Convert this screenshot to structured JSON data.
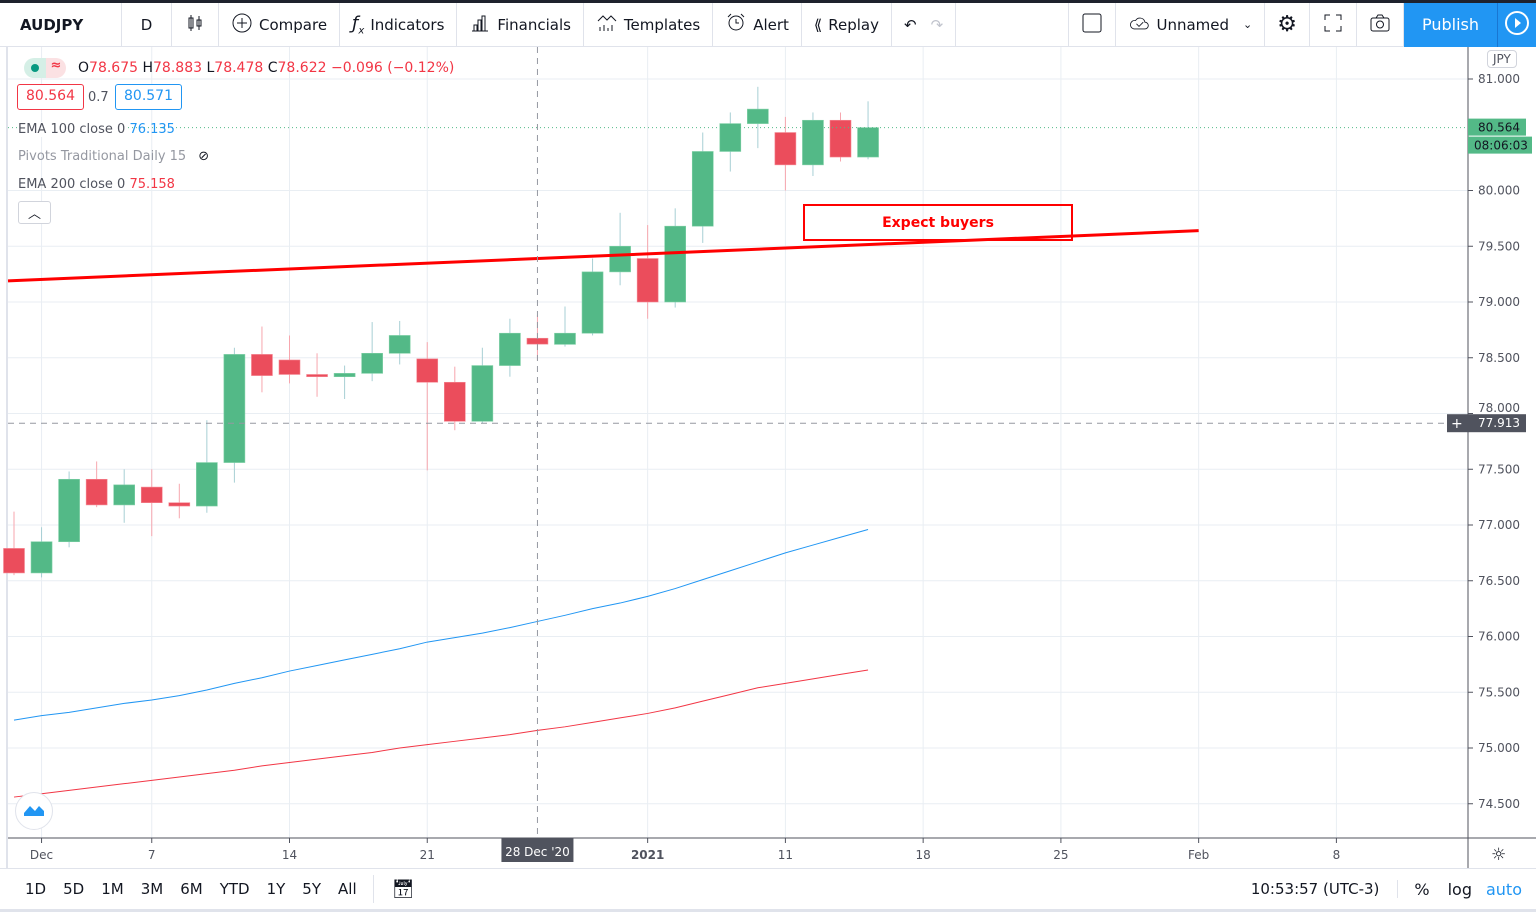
{
  "toolbar": {
    "symbol": "AUDJPY",
    "interval": "D",
    "compare": "Compare",
    "indicators": "Indicators",
    "financials": "Financials",
    "templates": "Templates",
    "alert": "Alert",
    "replay": "Replay",
    "layout_name": "Unnamed",
    "publish": "Publish"
  },
  "legend": {
    "ohlc": {
      "o_label": "O",
      "o": "78.675",
      "h_label": "H",
      "h": "78.883",
      "l_label": "L",
      "l": "78.478",
      "c_label": "C",
      "c": "78.622",
      "change": "−0.096 (−0.12%)"
    },
    "sell_price": "80.564",
    "spread": "0.7",
    "buy_price": "80.571",
    "indicators": [
      {
        "name": "EMA 100 close 0",
        "value": "76.135",
        "color": "#2196f3"
      },
      {
        "name": "Pivots Traditional Daily 15",
        "value": "",
        "hidden": true
      },
      {
        "name": "EMA 200 close 0",
        "value": "75.158",
        "color": "#f23645"
      }
    ]
  },
  "annotation": {
    "text": "Expect buyers",
    "color": "#ff0000"
  },
  "price_axis": {
    "currency": "JPY",
    "ticks": [
      "81.000",
      "80.000",
      "79.500",
      "79.000",
      "78.500",
      "78.000",
      "77.500",
      "77.000",
      "76.500",
      "76.000",
      "75.500",
      "75.000",
      "74.500"
    ],
    "last_price": "80.564",
    "countdown": "08:06:03",
    "crosshair_price": "77.913"
  },
  "time_axis": {
    "ticks": [
      "Dec",
      "7",
      "14",
      "21",
      "2021",
      "11",
      "18",
      "25",
      "Feb",
      "8"
    ],
    "crosshair_date": "28 Dec '20"
  },
  "bottom_bar": {
    "ranges": [
      "1D",
      "5D",
      "1M",
      "3M",
      "6M",
      "YTD",
      "1Y",
      "5Y",
      "All"
    ],
    "clock": "10:53:57 (UTC-3)",
    "percent": "%",
    "log": "log",
    "auto": "auto"
  },
  "chart_data": {
    "type": "candlestick",
    "symbol": "AUDJPY",
    "ylim": [
      74.3,
      81.3
    ],
    "up_color": "#53b987",
    "down_color": "#eb4d5c",
    "dates": [
      "2020-11-30",
      "2020-12-01",
      "2020-12-02",
      "2020-12-03",
      "2020-12-04",
      "2020-12-07",
      "2020-12-08",
      "2020-12-09",
      "2020-12-10",
      "2020-12-11",
      "2020-12-14",
      "2020-12-15",
      "2020-12-16",
      "2020-12-17",
      "2020-12-18",
      "2020-12-21",
      "2020-12-22",
      "2020-12-23",
      "2020-12-24",
      "2020-12-28",
      "2020-12-29",
      "2020-12-30",
      "2020-12-31",
      "2021-01-04",
      "2021-01-05",
      "2021-01-06",
      "2021-01-07",
      "2021-01-08",
      "2021-01-11",
      "2021-01-12",
      "2021-01-13",
      "2021-01-14"
    ],
    "open": [
      76.79,
      76.57,
      76.85,
      77.41,
      77.18,
      77.34,
      77.2,
      77.17,
      77.56,
      78.53,
      78.48,
      78.35,
      78.33,
      78.36,
      78.54,
      78.49,
      78.28,
      77.93,
      78.43,
      78.675,
      78.62,
      78.72,
      79.27,
      79.39,
      79.0,
      79.68,
      80.35,
      80.6,
      80.52,
      80.23,
      80.63,
      80.3
    ],
    "high": [
      77.12,
      76.98,
      77.48,
      77.57,
      77.5,
      77.5,
      77.37,
      77.94,
      78.59,
      78.78,
      78.7,
      78.54,
      78.43,
      78.82,
      78.83,
      78.64,
      78.42,
      78.59,
      78.85,
      78.883,
      78.96,
      79.39,
      79.8,
      79.69,
      79.84,
      80.52,
      80.7,
      80.93,
      80.66,
      80.7,
      80.7,
      80.8
    ],
    "low": [
      76.55,
      76.53,
      76.8,
      77.16,
      77.02,
      76.9,
      77.06,
      77.11,
      77.38,
      78.19,
      78.27,
      78.15,
      78.13,
      78.29,
      78.44,
      77.49,
      77.85,
      77.91,
      78.33,
      78.478,
      78.6,
      78.7,
      79.15,
      78.85,
      78.95,
      79.53,
      80.17,
      80.38,
      80.0,
      80.13,
      80.26,
      80.28
    ],
    "close": [
      76.57,
      76.85,
      77.41,
      77.18,
      77.36,
      77.2,
      77.17,
      77.56,
      78.53,
      78.34,
      78.35,
      78.33,
      78.36,
      78.54,
      78.7,
      78.28,
      77.93,
      78.43,
      78.72,
      78.622,
      78.72,
      79.27,
      79.5,
      79.0,
      79.68,
      80.35,
      80.6,
      80.73,
      80.23,
      80.63,
      80.3,
      80.564
    ],
    "series": [
      {
        "name": "EMA 100 close 0",
        "color": "#2196f3",
        "values": [
          75.25,
          75.29,
          75.32,
          75.36,
          75.4,
          75.43,
          75.47,
          75.52,
          75.58,
          75.63,
          75.69,
          75.74,
          75.79,
          75.84,
          75.89,
          75.95,
          75.99,
          76.03,
          76.08,
          76.135,
          76.19,
          76.25,
          76.3,
          76.36,
          76.43,
          76.51,
          76.59,
          76.67,
          76.75,
          76.82,
          76.89,
          76.96
        ]
      },
      {
        "name": "EMA 200 close 0",
        "color": "#f23645",
        "values": [
          74.56,
          74.59,
          74.62,
          74.65,
          74.68,
          74.71,
          74.74,
          74.77,
          74.8,
          74.84,
          74.87,
          74.9,
          74.93,
          74.96,
          75.0,
          75.03,
          75.06,
          75.09,
          75.12,
          75.158,
          75.19,
          75.23,
          75.27,
          75.31,
          75.36,
          75.42,
          75.48,
          75.54,
          75.58,
          75.62,
          75.66,
          75.7
        ]
      }
    ],
    "trendline": {
      "color": "#ff0000",
      "start": {
        "date": "2020-11-30",
        "price": 79.19
      },
      "end": {
        "date": "2021-02-01",
        "price": 79.64
      }
    },
    "grid": true
  }
}
